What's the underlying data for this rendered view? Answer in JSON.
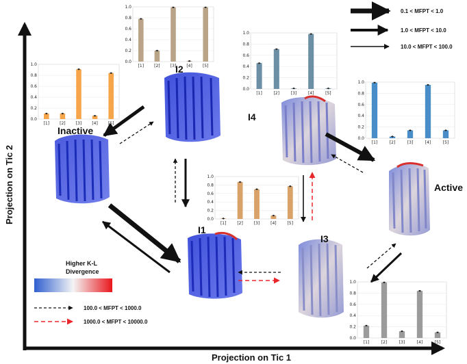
{
  "axes": {
    "x_label": "Projection on Tic 1",
    "y_label": "Projection on Tic 2"
  },
  "states": [
    {
      "id": "inactive",
      "label": "Inactive",
      "bar_color": "#f7a54a",
      "values": [
        0.1,
        0.1,
        0.91,
        0.06,
        0.84
      ]
    },
    {
      "id": "i2",
      "label": "I2",
      "bar_color": "#b9a487",
      "values": [
        0.78,
        0.2,
        0.99,
        0.01,
        0.99
      ]
    },
    {
      "id": "i4",
      "label": "I4",
      "bar_color": "#6d8fa6",
      "values": [
        0.46,
        0.71,
        0.01,
        0.98,
        0.01
      ]
    },
    {
      "id": "active",
      "label": "Active",
      "bar_color": "#4a8ec9",
      "values": [
        0.99,
        0.03,
        0.14,
        0.95,
        0.14
      ]
    },
    {
      "id": "i1",
      "label": "I1",
      "bar_color": "#d9a268",
      "values": [
        0.01,
        0.87,
        0.7,
        0.08,
        0.77
      ]
    },
    {
      "id": "i3",
      "label": "I3",
      "bar_color": "#9b9b9b",
      "values": [
        0.22,
        0.99,
        0.12,
        0.84,
        0.1
      ]
    }
  ],
  "chart_data": {
    "type": "bar",
    "categories": [
      "[1]",
      "[2]",
      "[3]",
      "[4]",
      "[5]"
    ],
    "ylim": [
      0,
      1.0
    ],
    "yticks": [
      "0.0",
      "0.2",
      "0.4",
      "0.6",
      "0.8",
      "1.0"
    ]
  },
  "legend": {
    "mfpt_solid": [
      {
        "label": "0.1 < MFPT < 1.0",
        "weight": "thick"
      },
      {
        "label": "1.0 < MFPT < 10.0",
        "weight": "medium"
      },
      {
        "label": "10.0 < MFPT < 100.0",
        "weight": "thin"
      }
    ],
    "mfpt_dashed": [
      {
        "label": "100.0 < MFPT < 1000.0",
        "color": "#222222"
      },
      {
        "label": "1000.0 < MFPT < 10000.0",
        "color": "#e8262b"
      }
    ],
    "colorbar_label_1": "Higher K-L",
    "colorbar_label_2": "Divergence",
    "colorbar_from": "#2f5fd0",
    "colorbar_to": "#e8161c"
  }
}
